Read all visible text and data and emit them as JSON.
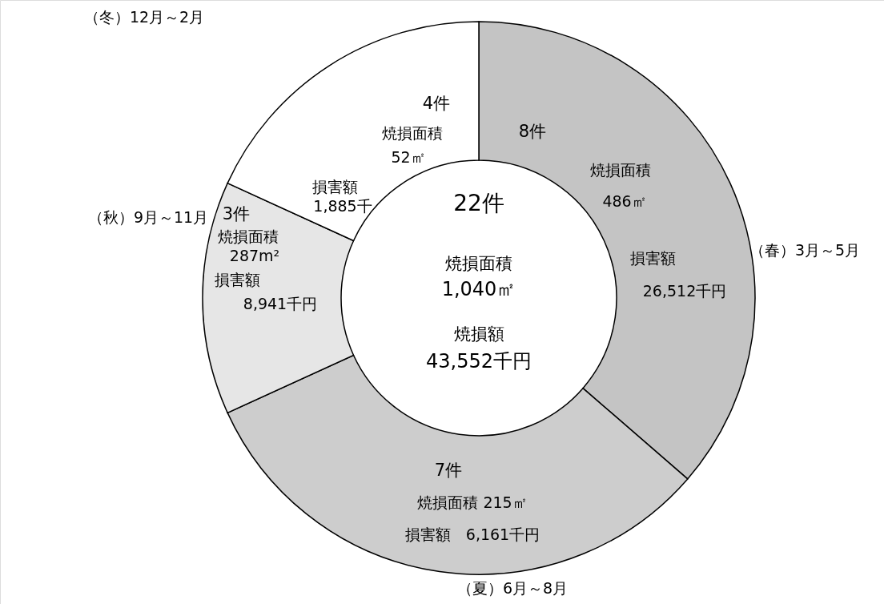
{
  "chart_data": {
    "type": "donut",
    "categories": [
      "（春）3月～5月",
      "（夏）6月～8月",
      "（秋）9月～11月",
      "（冬）12月～2月"
    ],
    "values": [
      8,
      7,
      3,
      4
    ],
    "colors": [
      "#c4c4c4",
      "#cdcdcd",
      "#e6e6e6",
      "#ffffff"
    ],
    "value_labels": [
      "8件",
      "7件",
      "3件",
      "4件"
    ],
    "legend": false,
    "annotations": [
      "焼損面積",
      "486㎡",
      "損害額",
      "26,512千円",
      "焼損面積 215㎡",
      "損害額　6,161千円",
      "焼損面積",
      "287m²",
      "損害額",
      "8,941千円",
      "焼損面積",
      "52㎡",
      "損害額",
      "1,885千",
      "22件",
      "焼損面積",
      "1,040㎡",
      "焼損額",
      "43,552千円"
    ]
  }
}
